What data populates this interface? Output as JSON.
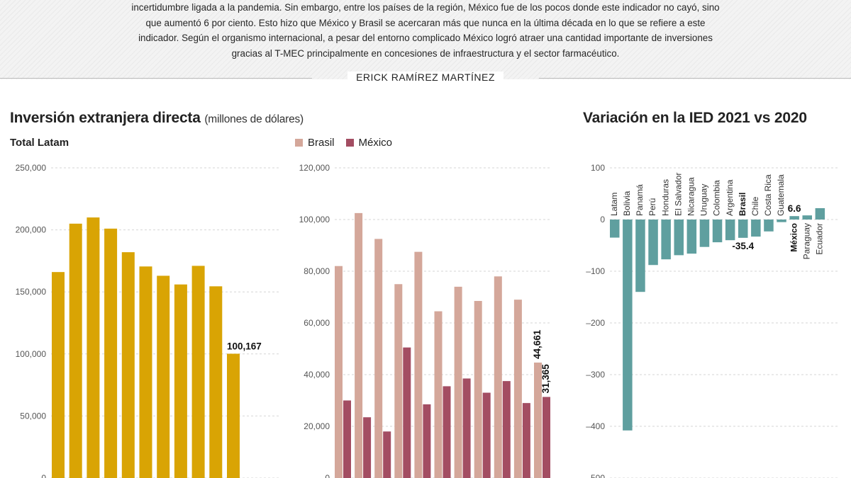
{
  "article": {
    "intro_lines": [
      "incertidumbre ligada a la pandemia. Sin embargo, entre los países de la región, México fue de los pocos donde este indicador no cayó, sino",
      "que aumentó 6 por ciento. Esto hizo que México y Brasil se acercaran más que nunca en la última década en lo que se refiere a este",
      "indicador. Según el organismo internacional, a pesar del entorno complicado México logró atraer una cantidad importante de inversiones",
      "gracias al T-MEC principalmente en concesiones de infraestructura y el sector farmacéutico."
    ],
    "author": "ERICK RAMÍREZ MARTÍNEZ"
  },
  "colors": {
    "latam_bar": "#d9a404",
    "brasil_bar": "#d4a79a",
    "mexico_bar": "#a34d62",
    "variation_bar": "#5f9f9f",
    "grid": "#d6d6d6"
  },
  "headings": {
    "left_title": "Inversión extranjera directa",
    "left_title_unit": "(millones de dólares)",
    "right_title": "Variación en la IED 2021 vs 2020"
  },
  "chart_data": [
    {
      "type": "bar",
      "subtitle": "Total Latam",
      "ylim": [
        0,
        250000
      ],
      "yticks": [
        0,
        50000,
        100000,
        150000,
        200000,
        250000
      ],
      "ytick_labels": [
        "0",
        "50,000",
        "100,000",
        "150,000",
        "200,000",
        "250,000"
      ],
      "grid": true,
      "series": [
        {
          "values": [
            166000,
            205000,
            210000,
            201000,
            182000,
            170500,
            163000,
            156000,
            171000,
            154500,
            100167
          ]
        }
      ],
      "data_labels": [
        {
          "index": 10,
          "text": "100,167"
        }
      ]
    },
    {
      "type": "bar",
      "ylim": [
        0,
        120000
      ],
      "yticks": [
        0,
        20000,
        40000,
        60000,
        80000,
        100000,
        120000
      ],
      "ytick_labels": [
        "0",
        "20,000",
        "40,000",
        "60,000",
        "80,000",
        "100,000",
        "120,000"
      ],
      "grid": true,
      "legend": "top-left",
      "series": [
        {
          "name": "Brasil",
          "values": [
            82000,
            102500,
            92500,
            75000,
            87500,
            64500,
            74000,
            68500,
            78000,
            69000,
            44661
          ]
        },
        {
          "name": "México",
          "values": [
            30000,
            23500,
            18000,
            50500,
            28500,
            35500,
            38500,
            33000,
            37500,
            29000,
            31365
          ]
        }
      ],
      "data_labels": [
        {
          "series": 0,
          "index": 10,
          "text": "44,661"
        },
        {
          "series": 1,
          "index": 10,
          "text": "31,365"
        }
      ]
    },
    {
      "type": "bar",
      "title": "Variación en la IED 2021 vs 2020",
      "ylim": [
        -500,
        100
      ],
      "yticks": [
        100,
        0,
        -100,
        -200,
        -300,
        -400,
        -500
      ],
      "ytick_labels": [
        "100",
        "0",
        "–100",
        "–200",
        "–300",
        "–400",
        "–500"
      ],
      "grid": true,
      "categories": [
        "Latam",
        "Bolivia",
        "Panamá",
        "Perú",
        "Honduras",
        "El Salvador",
        "Nicaragua",
        "Uruguay",
        "Colombia",
        "Argentina",
        "Brasil",
        "Chile",
        "Costa Rica",
        "Guatemala",
        "México",
        "Paraguay",
        "Ecuador"
      ],
      "values": [
        -35,
        -408,
        -140,
        -88,
        -77,
        -69,
        -66,
        -53,
        -44,
        -40,
        -35.4,
        -33,
        -23,
        -5,
        6.6,
        8,
        22
      ],
      "highlight": [
        "Brasil",
        "México"
      ],
      "data_labels": [
        {
          "category": "Brasil",
          "text": "-35.4"
        },
        {
          "category": "México",
          "text": "6.6"
        }
      ]
    }
  ]
}
